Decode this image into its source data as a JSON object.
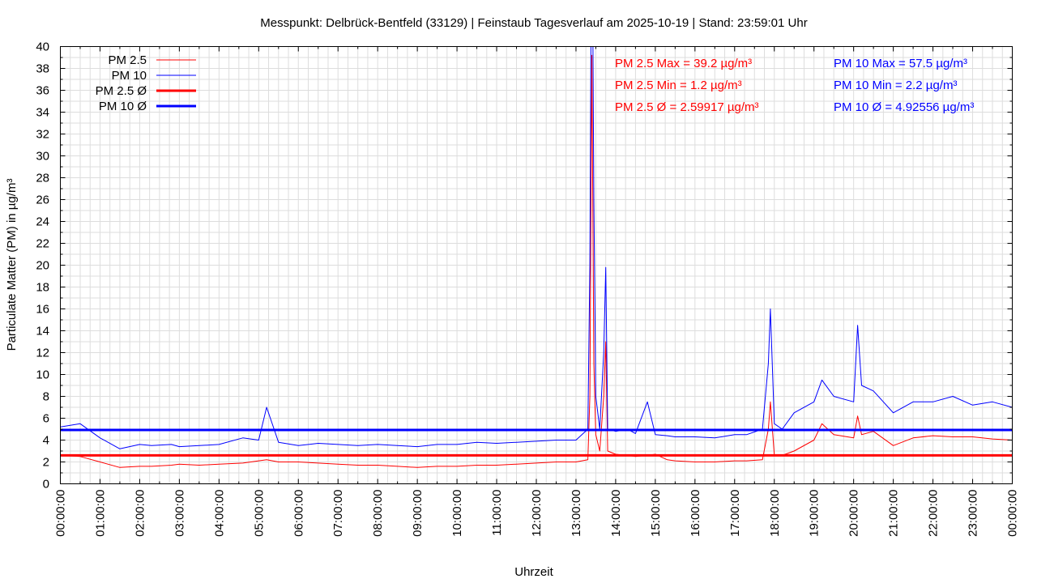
{
  "chart_data": {
    "type": "line",
    "title": "Messpunkt: Delbrück-Bentfeld (33129) | Feinstaub Tagesverlauf am 2025-10-19 | Stand: 23:59:01 Uhr",
    "xlabel": "Uhrzeit",
    "ylabel": "Particulate Matter (PM) in µg/m³",
    "x_unit": "hours",
    "xlim": [
      0,
      24
    ],
    "ylim": [
      0,
      40
    ],
    "grid": true,
    "legend_position": "top-left",
    "x_tick_labels": [
      "00:00:00",
      "01:00:00",
      "02:00:00",
      "03:00:00",
      "04:00:00",
      "05:00:00",
      "06:00:00",
      "07:00:00",
      "08:00:00",
      "09:00:00",
      "10:00:00",
      "11:00:00",
      "12:00:00",
      "13:00:00",
      "14:00:00",
      "15:00:00",
      "16:00:00",
      "17:00:00",
      "18:00:00",
      "19:00:00",
      "20:00:00",
      "21:00:00",
      "22:00:00",
      "23:00:00",
      "00:00:00"
    ],
    "y_ticks": [
      0,
      2,
      4,
      6,
      8,
      10,
      12,
      14,
      16,
      18,
      20,
      22,
      24,
      26,
      28,
      30,
      32,
      34,
      36,
      38,
      40
    ],
    "series": [
      {
        "name": "PM 2.5",
        "color": "#ff0000",
        "style": "thin",
        "x": [
          0,
          0.5,
          1,
          1.5,
          2,
          2.3,
          2.8,
          3,
          3.5,
          4,
          4.6,
          5,
          5.2,
          5.5,
          6,
          6.5,
          7,
          7.5,
          8,
          8.5,
          9,
          9.5,
          10,
          10.5,
          11,
          11.5,
          12,
          12.5,
          13,
          13.3,
          13.35,
          13.4,
          13.45,
          13.5,
          13.6,
          13.7,
          13.75,
          13.8,
          14,
          14.3,
          14.5,
          14.8,
          15,
          15.3,
          15.5,
          16,
          16.5,
          17,
          17.3,
          17.7,
          17.85,
          17.9,
          18,
          18.2,
          18.5,
          19,
          19.2,
          19.5,
          20,
          20.1,
          20.2,
          20.5,
          21,
          21.5,
          22,
          22.5,
          23,
          23.5,
          24
        ],
        "values": [
          2.6,
          2.5,
          2.0,
          1.5,
          1.6,
          1.6,
          1.7,
          1.8,
          1.7,
          1.8,
          1.9,
          2.1,
          2.2,
          2.0,
          2.0,
          1.9,
          1.8,
          1.7,
          1.7,
          1.6,
          1.5,
          1.6,
          1.6,
          1.7,
          1.7,
          1.8,
          1.9,
          2.0,
          2.0,
          2.2,
          8.0,
          39.2,
          11.0,
          4.5,
          3.0,
          8.0,
          13.0,
          3.0,
          2.7,
          2.6,
          2.5,
          2.6,
          2.7,
          2.2,
          2.1,
          2.0,
          2.0,
          2.1,
          2.1,
          2.2,
          5.0,
          7.5,
          2.6,
          2.6,
          3.0,
          4.0,
          5.5,
          4.5,
          4.2,
          6.2,
          4.5,
          4.8,
          3.5,
          4.2,
          4.4,
          4.3,
          4.3,
          4.1,
          4.0
        ]
      },
      {
        "name": "PM 10",
        "color": "#0000ff",
        "style": "thin",
        "x": [
          0,
          0.5,
          1,
          1.5,
          2,
          2.3,
          2.8,
          3,
          3.5,
          4,
          4.6,
          5,
          5.2,
          5.5,
          6,
          6.5,
          7,
          7.5,
          8,
          8.5,
          9,
          9.5,
          10,
          10.5,
          11,
          11.5,
          12,
          12.5,
          13,
          13.3,
          13.35,
          13.4,
          13.45,
          13.5,
          13.6,
          13.7,
          13.75,
          13.8,
          14,
          14.3,
          14.5,
          14.8,
          15,
          15.3,
          15.5,
          16,
          16.5,
          17,
          17.3,
          17.7,
          17.85,
          17.9,
          18,
          18.2,
          18.5,
          19,
          19.2,
          19.5,
          20,
          20.1,
          20.2,
          20.5,
          21,
          21.5,
          22,
          22.5,
          23,
          23.5,
          24
        ],
        "values": [
          5.2,
          5.5,
          4.2,
          3.2,
          3.6,
          3.5,
          3.6,
          3.4,
          3.5,
          3.6,
          4.2,
          4.0,
          7.0,
          3.8,
          3.5,
          3.7,
          3.6,
          3.5,
          3.6,
          3.5,
          3.4,
          3.6,
          3.6,
          3.8,
          3.7,
          3.8,
          3.9,
          4.0,
          4.0,
          5.0,
          20.0,
          57.5,
          26.0,
          8.0,
          5.0,
          12.0,
          19.8,
          5.0,
          4.8,
          5.0,
          4.6,
          7.5,
          4.5,
          4.4,
          4.3,
          4.3,
          4.2,
          4.5,
          4.5,
          5.0,
          11.0,
          16.0,
          5.5,
          5.0,
          6.5,
          7.5,
          9.5,
          8.0,
          7.5,
          14.5,
          9.0,
          8.5,
          6.5,
          7.5,
          7.5,
          8.0,
          7.2,
          7.5,
          7.0
        ]
      },
      {
        "name": "PM 2.5 Ø",
        "color": "#ff0000",
        "style": "thick",
        "constant": 2.59917
      },
      {
        "name": "PM 10 Ø",
        "color": "#0000ff",
        "style": "thick",
        "constant": 4.92556
      }
    ],
    "stats": {
      "pm25_max": "PM 2.5 Max = 39.2 µg/m³",
      "pm25_min": "PM 2.5 Min = 1.2 µg/m³",
      "pm25_avg": "PM 2.5 Ø = 2.59917 µg/m³",
      "pm10_max": "PM 10 Max = 57.5 µg/m³",
      "pm10_min": "PM 10 Min = 2.2 µg/m³",
      "pm10_avg": "PM 10 Ø = 4.92556 µg/m³"
    }
  },
  "colors": {
    "pm25": "#ff0000",
    "pm10": "#0000ff",
    "grid": "#dddddd",
    "frame": "#000000"
  }
}
